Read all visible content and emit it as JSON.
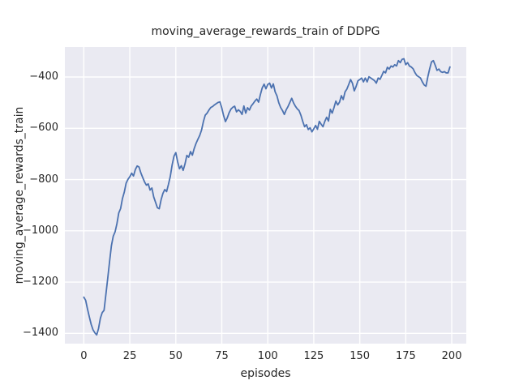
{
  "chart_data": {
    "type": "line",
    "title": "moving_average_rewards_train of DDPG",
    "xlabel": "episodes",
    "ylabel": "moving_average_rewards_train",
    "xlim": [
      -10.3,
      207.9
    ],
    "ylim": [
      -1440,
      -283
    ],
    "x_ticks": [
      0,
      25,
      50,
      75,
      100,
      125,
      150,
      175,
      200
    ],
    "x_tick_labels": [
      "0",
      "25",
      "50",
      "75",
      "100",
      "125",
      "150",
      "175",
      "200"
    ],
    "y_ticks": [
      -400,
      -600,
      -800,
      -1000,
      -1200,
      -1400
    ],
    "y_tick_labels": [
      "−400",
      "−600",
      "−800",
      "−1000",
      "−1200",
      "−1400"
    ],
    "grid": true,
    "legend": "none",
    "style": {
      "figure_bg": "#FFFFFF",
      "axes_bg": "#EAEAF2",
      "grid_color": "#FFFFFF",
      "line_color": "#4C72B0",
      "text_color": "#262626",
      "line_width": 1.8
    },
    "series": [
      {
        "name": "moving_average_rewards_train",
        "points": [
          [
            0,
            -1259
          ],
          [
            1,
            -1271
          ],
          [
            2,
            -1305
          ],
          [
            3,
            -1336
          ],
          [
            4,
            -1365
          ],
          [
            5,
            -1386
          ],
          [
            6,
            -1398
          ],
          [
            7,
            -1406
          ],
          [
            8,
            -1381
          ],
          [
            9,
            -1341
          ],
          [
            10,
            -1319
          ],
          [
            11,
            -1310
          ],
          [
            12,
            -1248
          ],
          [
            13,
            -1185
          ],
          [
            14,
            -1120
          ],
          [
            15,
            -1058
          ],
          [
            16,
            -1021
          ],
          [
            17,
            -1004
          ],
          [
            18,
            -972
          ],
          [
            19,
            -930
          ],
          [
            20,
            -913
          ],
          [
            21,
            -874
          ],
          [
            22,
            -849
          ],
          [
            23,
            -814
          ],
          [
            24,
            -799
          ],
          [
            25,
            -789
          ],
          [
            26,
            -775
          ],
          [
            27,
            -786
          ],
          [
            28,
            -761
          ],
          [
            29,
            -747
          ],
          [
            30,
            -751
          ],
          [
            31,
            -774
          ],
          [
            32,
            -792
          ],
          [
            33,
            -809
          ],
          [
            34,
            -822
          ],
          [
            35,
            -817
          ],
          [
            36,
            -841
          ],
          [
            37,
            -833
          ],
          [
            38,
            -868
          ],
          [
            39,
            -889
          ],
          [
            40,
            -910
          ],
          [
            41,
            -914
          ],
          [
            42,
            -879
          ],
          [
            43,
            -854
          ],
          [
            44,
            -839
          ],
          [
            45,
            -847
          ],
          [
            46,
            -819
          ],
          [
            47,
            -788
          ],
          [
            48,
            -743
          ],
          [
            49,
            -709
          ],
          [
            50,
            -695
          ],
          [
            51,
            -731
          ],
          [
            52,
            -758
          ],
          [
            53,
            -746
          ],
          [
            54,
            -764
          ],
          [
            55,
            -739
          ],
          [
            56,
            -706
          ],
          [
            57,
            -713
          ],
          [
            58,
            -691
          ],
          [
            59,
            -705
          ],
          [
            60,
            -679
          ],
          [
            61,
            -659
          ],
          [
            62,
            -643
          ],
          [
            63,
            -628
          ],
          [
            64,
            -607
          ],
          [
            65,
            -574
          ],
          [
            66,
            -549
          ],
          [
            67,
            -541
          ],
          [
            68,
            -529
          ],
          [
            69,
            -519
          ],
          [
            70,
            -515
          ],
          [
            71,
            -509
          ],
          [
            72,
            -504
          ],
          [
            73,
            -499
          ],
          [
            74,
            -497
          ],
          [
            75,
            -521
          ],
          [
            76,
            -551
          ],
          [
            77,
            -574
          ],
          [
            78,
            -559
          ],
          [
            79,
            -539
          ],
          [
            80,
            -525
          ],
          [
            81,
            -518
          ],
          [
            82,
            -514
          ],
          [
            83,
            -536
          ],
          [
            84,
            -528
          ],
          [
            85,
            -534
          ],
          [
            86,
            -546
          ],
          [
            87,
            -513
          ],
          [
            88,
            -541
          ],
          [
            89,
            -520
          ],
          [
            90,
            -529
          ],
          [
            91,
            -513
          ],
          [
            92,
            -504
          ],
          [
            93,
            -494
          ],
          [
            94,
            -486
          ],
          [
            95,
            -498
          ],
          [
            96,
            -468
          ],
          [
            97,
            -442
          ],
          [
            98,
            -428
          ],
          [
            99,
            -446
          ],
          [
            100,
            -429
          ],
          [
            101,
            -424
          ],
          [
            102,
            -443
          ],
          [
            103,
            -427
          ],
          [
            104,
            -458
          ],
          [
            105,
            -474
          ],
          [
            106,
            -501
          ],
          [
            107,
            -519
          ],
          [
            108,
            -531
          ],
          [
            109,
            -546
          ],
          [
            110,
            -528
          ],
          [
            111,
            -515
          ],
          [
            112,
            -499
          ],
          [
            113,
            -483
          ],
          [
            114,
            -501
          ],
          [
            115,
            -514
          ],
          [
            116,
            -524
          ],
          [
            117,
            -531
          ],
          [
            118,
            -549
          ],
          [
            119,
            -573
          ],
          [
            120,
            -594
          ],
          [
            121,
            -586
          ],
          [
            122,
            -605
          ],
          [
            123,
            -598
          ],
          [
            124,
            -614
          ],
          [
            125,
            -602
          ],
          [
            126,
            -589
          ],
          [
            127,
            -604
          ],
          [
            128,
            -573
          ],
          [
            129,
            -584
          ],
          [
            130,
            -594
          ],
          [
            131,
            -573
          ],
          [
            132,
            -557
          ],
          [
            133,
            -572
          ],
          [
            134,
            -526
          ],
          [
            135,
            -541
          ],
          [
            136,
            -519
          ],
          [
            137,
            -494
          ],
          [
            138,
            -509
          ],
          [
            139,
            -498
          ],
          [
            140,
            -473
          ],
          [
            141,
            -488
          ],
          [
            142,
            -458
          ],
          [
            143,
            -447
          ],
          [
            144,
            -429
          ],
          [
            145,
            -410
          ],
          [
            146,
            -424
          ],
          [
            147,
            -454
          ],
          [
            148,
            -437
          ],
          [
            149,
            -415
          ],
          [
            150,
            -410
          ],
          [
            151,
            -404
          ],
          [
            152,
            -419
          ],
          [
            153,
            -404
          ],
          [
            154,
            -419
          ],
          [
            155,
            -399
          ],
          [
            156,
            -404
          ],
          [
            157,
            -409
          ],
          [
            158,
            -414
          ],
          [
            159,
            -424
          ],
          [
            160,
            -404
          ],
          [
            161,
            -409
          ],
          [
            162,
            -394
          ],
          [
            163,
            -378
          ],
          [
            164,
            -384
          ],
          [
            165,
            -362
          ],
          [
            166,
            -369
          ],
          [
            167,
            -357
          ],
          [
            168,
            -361
          ],
          [
            169,
            -352
          ],
          [
            170,
            -357
          ],
          [
            171,
            -336
          ],
          [
            172,
            -344
          ],
          [
            173,
            -331
          ],
          [
            174,
            -329
          ],
          [
            175,
            -352
          ],
          [
            176,
            -344
          ],
          [
            177,
            -357
          ],
          [
            178,
            -361
          ],
          [
            179,
            -368
          ],
          [
            180,
            -383
          ],
          [
            181,
            -394
          ],
          [
            182,
            -399
          ],
          [
            183,
            -404
          ],
          [
            184,
            -419
          ],
          [
            185,
            -431
          ],
          [
            186,
            -436
          ],
          [
            187,
            -399
          ],
          [
            188,
            -368
          ],
          [
            189,
            -341
          ],
          [
            190,
            -336
          ],
          [
            191,
            -354
          ],
          [
            192,
            -374
          ],
          [
            193,
            -369
          ],
          [
            194,
            -379
          ],
          [
            195,
            -382
          ],
          [
            196,
            -379
          ],
          [
            197,
            -384
          ],
          [
            198,
            -384
          ],
          [
            199,
            -361
          ]
        ]
      }
    ]
  }
}
